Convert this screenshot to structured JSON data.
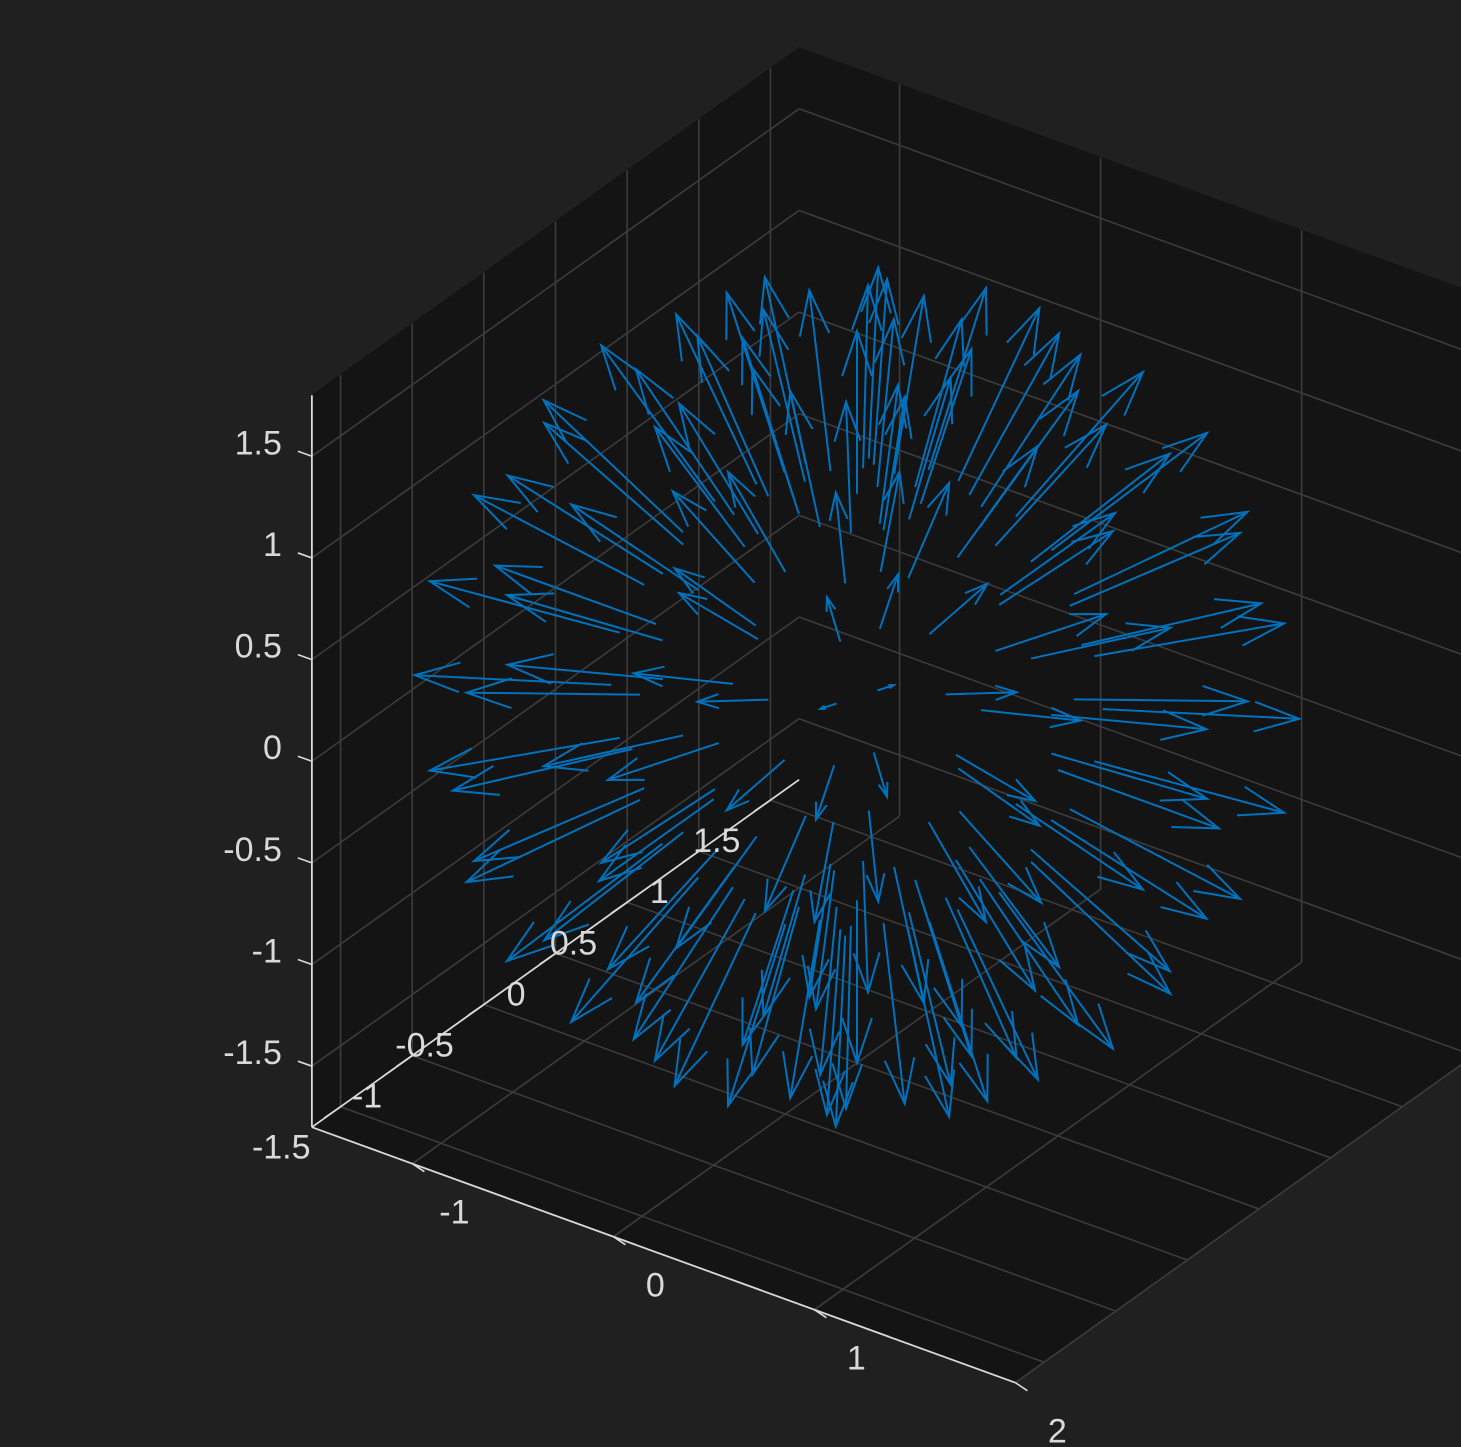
{
  "chart_data": {
    "type": "quiver3",
    "title": "",
    "xlabel": "",
    "ylabel": "",
    "zlabel": "",
    "view": {
      "azimuth": -37.5,
      "elevation": 30
    },
    "xlim": [
      -1.5,
      2
    ],
    "ylim": [
      -1.7,
      1.7
    ],
    "zlim": [
      -1.8,
      1.8
    ],
    "x_ticks": [
      -1,
      0,
      1,
      2
    ],
    "x_tick_labels": [
      "-1",
      "0",
      "1",
      "2"
    ],
    "y_ticks": [
      -1.5,
      -1,
      -0.5,
      0,
      0.5,
      1,
      1.5
    ],
    "y_tick_labels": [
      "-1.5",
      "-1",
      "-0.5",
      "0",
      "0.5",
      "1",
      "1.5"
    ],
    "z_ticks": [
      -1.5,
      -1,
      -0.5,
      0,
      0.5,
      1,
      1.5
    ],
    "z_tick_labels": [
      "-1.5",
      "-1",
      "-0.5",
      "0",
      "0.5",
      "1",
      "1.5"
    ],
    "grid": true,
    "colors": {
      "figure_background": "#202020",
      "axes_background": "#141414",
      "grid": "#3c3c3c",
      "axis_line": "#d9d9d9",
      "tick_text": "#d9d9d9",
      "arrows": "#0072bd"
    },
    "description": "Vector field on a unit sphere: arrows start on the sphere surface (radius 1) and point radially outward.",
    "arrow_sampling": {
      "parameterization": "sphere(12) surface points",
      "radius": 1,
      "vector_scale": 0.8
    },
    "arrows": []
  }
}
